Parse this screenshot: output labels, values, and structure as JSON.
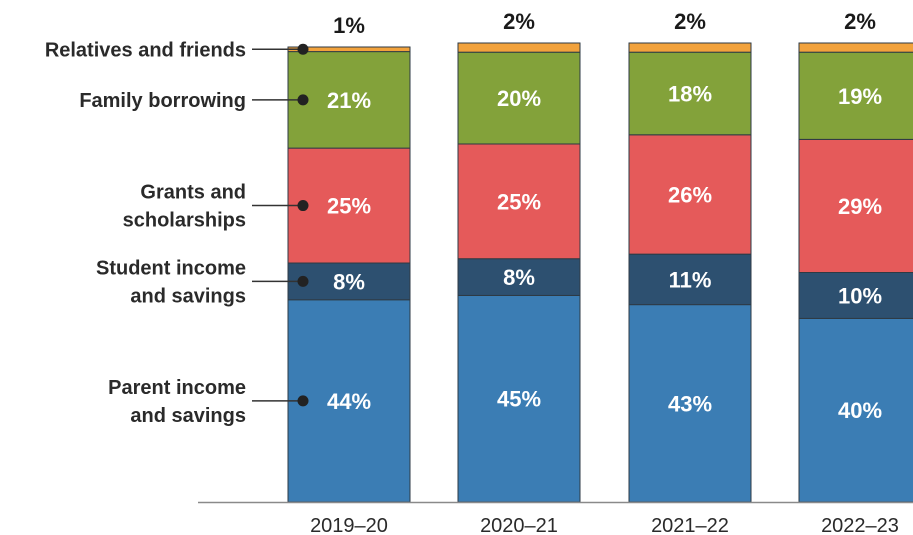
{
  "chart_data": {
    "type": "bar",
    "stacked": true,
    "normalized": "percent",
    "categories": [
      "2019–20",
      "2020–21",
      "2021–22",
      "2022–23"
    ],
    "series": [
      {
        "name": "Parent income and savings",
        "name_lines": [
          "Parent income",
          "and savings"
        ],
        "values": [
          44,
          45,
          43,
          40
        ],
        "labels": [
          "44%",
          "45%",
          "43%",
          "40%"
        ],
        "color": "#3b7db4"
      },
      {
        "name": "Student income and savings",
        "name_lines": [
          "Student income",
          "and savings"
        ],
        "values": [
          8,
          8,
          11,
          10
        ],
        "labels": [
          "8%",
          "8%",
          "11%",
          "10%"
        ],
        "color": "#2d5070"
      },
      {
        "name": "Grants and scholarships",
        "name_lines": [
          "Grants and",
          "scholarships"
        ],
        "values": [
          25,
          25,
          26,
          29
        ],
        "labels": [
          "25%",
          "25%",
          "26%",
          "29%"
        ],
        "color": "#e55a5a"
      },
      {
        "name": "Family borrowing",
        "name_lines": [
          "Family borrowing"
        ],
        "values": [
          21,
          20,
          18,
          19
        ],
        "labels": [
          "21%",
          "20%",
          "18%",
          "19%"
        ],
        "color": "#83a23a"
      },
      {
        "name": "Relatives and friends",
        "name_lines": [
          "Relatives and friends"
        ],
        "values": [
          1,
          2,
          2,
          2
        ],
        "labels": [
          "1%",
          "2%",
          "2%",
          "2%"
        ],
        "color": "#f2a23c"
      }
    ],
    "legend_placement": "left",
    "grid": false,
    "ylim": [
      0,
      100
    ]
  }
}
